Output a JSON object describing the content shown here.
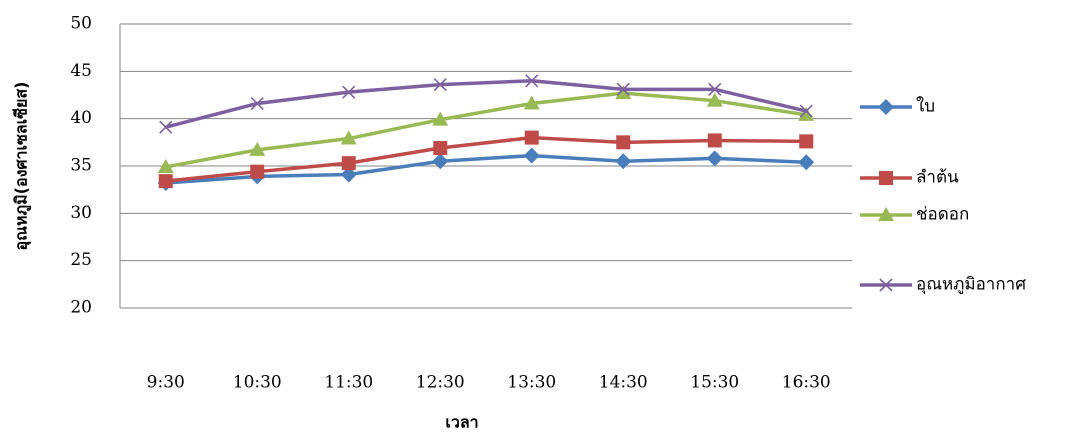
{
  "chart_data": {
    "type": "line",
    "y_label": "อุณหภูมิ(องศาเซลเซียส)",
    "x_label": "เวลา",
    "categories": [
      "9:30",
      "10:30",
      "11:30",
      "12:30",
      "13:30",
      "14:30",
      "15:30",
      "16:30"
    ],
    "series": [
      {
        "name": "ใบ",
        "color": "#4a7ebb",
        "marker": "diamond",
        "values": [
          33.2,
          33.9,
          34.1,
          35.5,
          36.1,
          35.5,
          35.8,
          35.4
        ]
      },
      {
        "name": "ลำต้น",
        "color": "#be4b48",
        "marker": "square",
        "values": [
          33.4,
          34.4,
          35.3,
          36.9,
          38.0,
          37.5,
          37.7,
          37.6
        ]
      },
      {
        "name": "ช่อดอก",
        "color": "#98b954",
        "marker": "triangle",
        "values": [
          34.9,
          36.7,
          37.9,
          39.9,
          41.6,
          42.7,
          41.9,
          40.4
        ]
      },
      {
        "name": "อุณหภูมิอากาศ",
        "color": "#7d60a0",
        "marker": "x",
        "values": [
          39.1,
          41.6,
          42.8,
          43.6,
          44.0,
          43.1,
          43.1,
          40.8
        ]
      }
    ],
    "ylim": [
      20,
      50
    ],
    "yticks": [
      20,
      25,
      30,
      35,
      40,
      45,
      50
    ],
    "grid": true,
    "legend": "right"
  }
}
